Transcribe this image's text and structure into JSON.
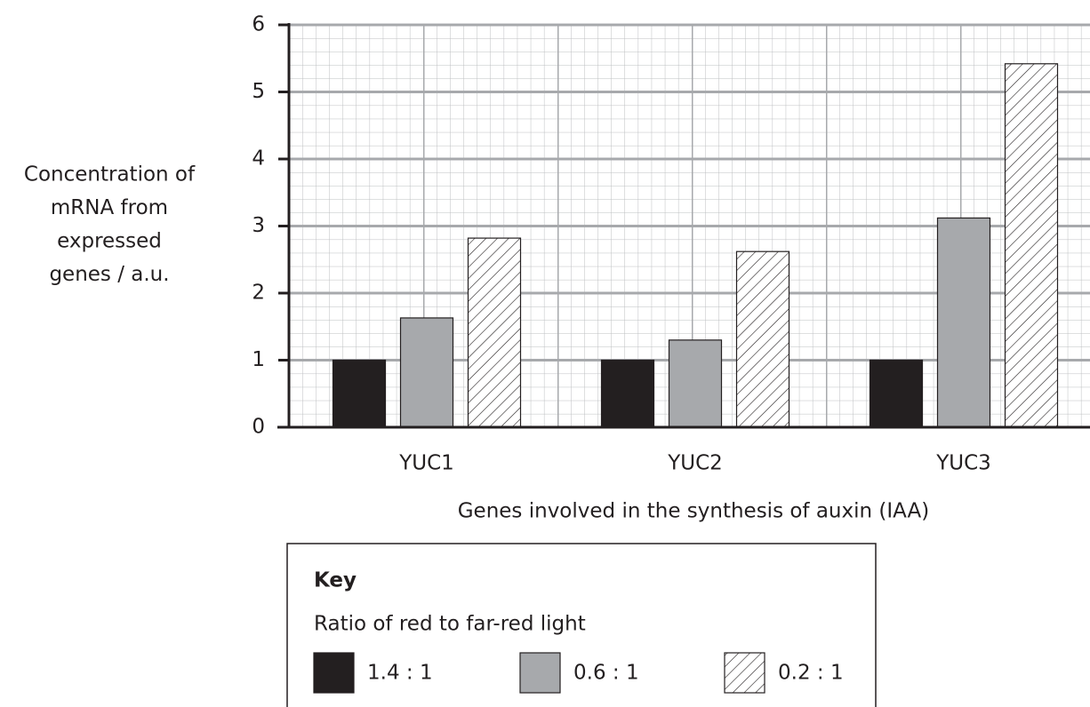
{
  "chart_data": {
    "type": "bar",
    "ylabel": [
      "Concentration of",
      "mRNA from",
      "expressed",
      "genes / a.u."
    ],
    "xlabel": "Genes involved in the synthesis of auxin (IAA)",
    "categories": [
      "YUC1",
      "YUC2",
      "YUC3"
    ],
    "series": [
      {
        "name": "1.4 : 1",
        "color": "#231f20",
        "values": [
          1.0,
          1.0,
          1.0
        ]
      },
      {
        "name": "0.6 : 1",
        "color": "#a7a9ac",
        "values": [
          1.63,
          1.3,
          3.12
        ]
      },
      {
        "name": "0.2 : 1",
        "color": "#ffffff",
        "pattern": "hatch",
        "values": [
          2.82,
          2.62,
          5.42
        ]
      }
    ],
    "ylim": [
      0,
      6
    ],
    "yticks": [
      0,
      1,
      2,
      3,
      4,
      5,
      6
    ],
    "grid": true,
    "legend": {
      "title": "Key",
      "subtitle": "Ratio of red to far-red light"
    }
  }
}
